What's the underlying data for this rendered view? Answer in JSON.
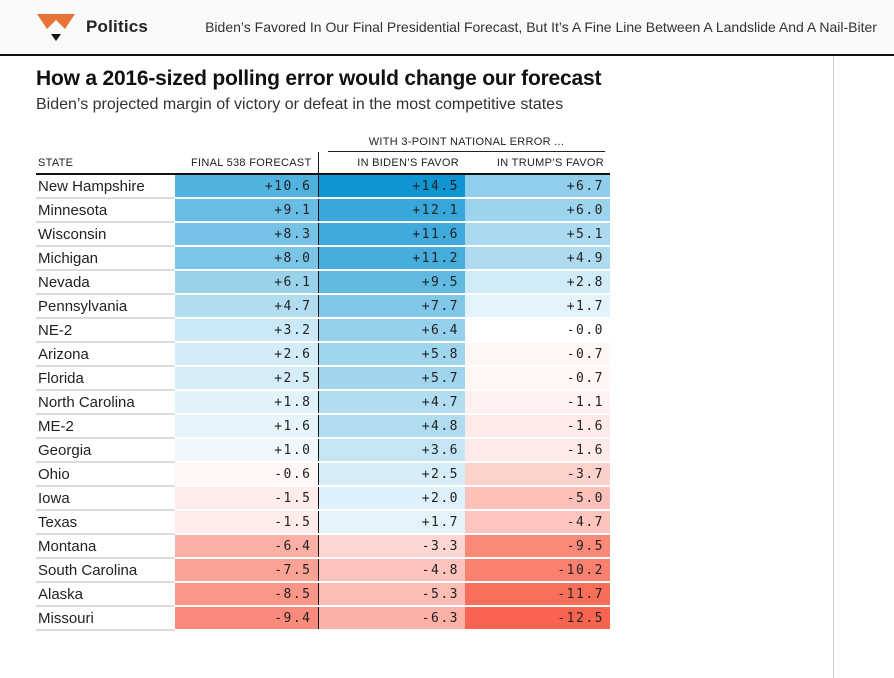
{
  "header": {
    "section_label": "Politics",
    "article_title": "Biden’s Favored In Our Final Presidential Forecast, But It’s A Fine Line Between A Landslide And A Nail-Biter"
  },
  "colors": {
    "fox_orange": "#e8713a",
    "blue_max": "#1095d3",
    "blue_max_value": 14.5,
    "red_max": "#f96450",
    "red_max_value": 12.5,
    "header_rule": "#111111"
  },
  "chart_data": {
    "type": "table",
    "title": "How a 2016-sized polling error would change our forecast",
    "subtitle": "Biden’s projected margin of victory or defeat in the most competitive states",
    "group_header": "WITH 3-POINT NATIONAL ERROR ...",
    "columns": [
      "STATE",
      "FINAL 538 FORECAST",
      "IN BIDEN’S FAVOR",
      "IN TRUMP’S FAVOR"
    ],
    "value_encoding": "cell background shade scales blue for Biden margin, red for Trump margin",
    "rows": [
      {
        "state": "New Hampshire",
        "final_538_forecast": "+10.6",
        "in_bidens_favor": "+14.5",
        "in_trumps_favor": "+6.7"
      },
      {
        "state": "Minnesota",
        "final_538_forecast": "+9.1",
        "in_bidens_favor": "+12.1",
        "in_trumps_favor": "+6.0"
      },
      {
        "state": "Wisconsin",
        "final_538_forecast": "+8.3",
        "in_bidens_favor": "+11.6",
        "in_trumps_favor": "+5.1"
      },
      {
        "state": "Michigan",
        "final_538_forecast": "+8.0",
        "in_bidens_favor": "+11.2",
        "in_trumps_favor": "+4.9"
      },
      {
        "state": "Nevada",
        "final_538_forecast": "+6.1",
        "in_bidens_favor": "+9.5",
        "in_trumps_favor": "+2.8"
      },
      {
        "state": "Pennsylvania",
        "final_538_forecast": "+4.7",
        "in_bidens_favor": "+7.7",
        "in_trumps_favor": "+1.7"
      },
      {
        "state": "NE-2",
        "final_538_forecast": "+3.2",
        "in_bidens_favor": "+6.4",
        "in_trumps_favor": "-0.0"
      },
      {
        "state": "Arizona",
        "final_538_forecast": "+2.6",
        "in_bidens_favor": "+5.8",
        "in_trumps_favor": "-0.7"
      },
      {
        "state": "Florida",
        "final_538_forecast": "+2.5",
        "in_bidens_favor": "+5.7",
        "in_trumps_favor": "-0.7"
      },
      {
        "state": "North Carolina",
        "final_538_forecast": "+1.8",
        "in_bidens_favor": "+4.7",
        "in_trumps_favor": "-1.1"
      },
      {
        "state": "ME-2",
        "final_538_forecast": "+1.6",
        "in_bidens_favor": "+4.8",
        "in_trumps_favor": "-1.6"
      },
      {
        "state": "Georgia",
        "final_538_forecast": "+1.0",
        "in_bidens_favor": "+3.6",
        "in_trumps_favor": "-1.6"
      },
      {
        "state": "Ohio",
        "final_538_forecast": "-0.6",
        "in_bidens_favor": "+2.5",
        "in_trumps_favor": "-3.7"
      },
      {
        "state": "Iowa",
        "final_538_forecast": "-1.5",
        "in_bidens_favor": "+2.0",
        "in_trumps_favor": "-5.0"
      },
      {
        "state": "Texas",
        "final_538_forecast": "-1.5",
        "in_bidens_favor": "+1.7",
        "in_trumps_favor": "-4.7"
      },
      {
        "state": "Montana",
        "final_538_forecast": "-6.4",
        "in_bidens_favor": "-3.3",
        "in_trumps_favor": "-9.5"
      },
      {
        "state": "South Carolina",
        "final_538_forecast": "-7.5",
        "in_bidens_favor": "-4.8",
        "in_trumps_favor": "-10.2"
      },
      {
        "state": "Alaska",
        "final_538_forecast": "-8.5",
        "in_bidens_favor": "-5.3",
        "in_trumps_favor": "-11.7"
      },
      {
        "state": "Missouri",
        "final_538_forecast": "-9.4",
        "in_bidens_favor": "-6.3",
        "in_trumps_favor": "-12.5"
      }
    ]
  }
}
